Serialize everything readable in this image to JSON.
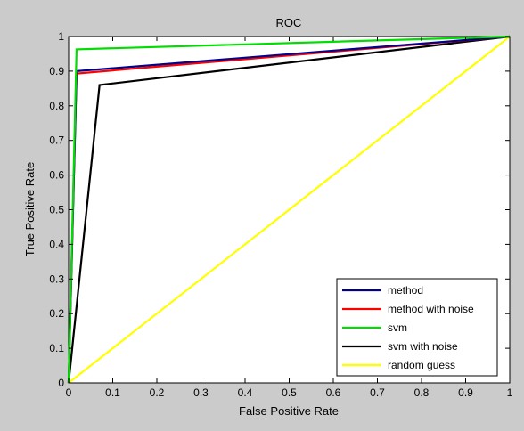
{
  "window": {
    "background": "#cbcbcb"
  },
  "chart_data": {
    "type": "line",
    "title": "ROC",
    "xlabel": "False Positive Rate",
    "ylabel": "True Positive Rate",
    "xlim": [
      0,
      1
    ],
    "ylim": [
      0,
      1
    ],
    "grid": false,
    "legend_position": "bottom-right",
    "xticks": [
      0,
      0.1,
      0.2,
      0.3,
      0.4,
      0.5,
      0.6,
      0.7,
      0.8,
      0.9,
      1
    ],
    "xtick_labels": [
      "0",
      "0.1",
      "0.2",
      "0.3",
      "0.4",
      "0.5",
      "0.6",
      "0.7",
      "0.8",
      "0.9",
      "1"
    ],
    "yticks": [
      0,
      0.1,
      0.2,
      0.3,
      0.4,
      0.5,
      0.6,
      0.7,
      0.8,
      0.9,
      1
    ],
    "ytick_labels": [
      "0",
      "0.1",
      "0.2",
      "0.3",
      "0.4",
      "0.5",
      "0.6",
      "0.7",
      "0.8",
      "0.9",
      "1"
    ],
    "series": [
      {
        "name": "random guess",
        "color": "#ffff00",
        "x": [
          0,
          1
        ],
        "y": [
          0,
          1
        ]
      },
      {
        "name": "svm with noise",
        "color": "#000000",
        "x": [
          0,
          0.07,
          1
        ],
        "y": [
          0,
          0.86,
          1
        ]
      },
      {
        "name": "method with noise",
        "color": "#ff0000",
        "x": [
          0,
          0.018,
          1
        ],
        "y": [
          0,
          0.893,
          1
        ]
      },
      {
        "name": "method",
        "color": "#00008b",
        "x": [
          0,
          0.018,
          1
        ],
        "y": [
          0,
          0.9,
          1
        ]
      },
      {
        "name": "svm",
        "color": "#00dd00",
        "x": [
          0,
          0.018,
          1
        ],
        "y": [
          0,
          0.963,
          1
        ]
      }
    ],
    "legend_order": [
      "method",
      "method with noise",
      "svm",
      "svm with noise",
      "random guess"
    ]
  }
}
